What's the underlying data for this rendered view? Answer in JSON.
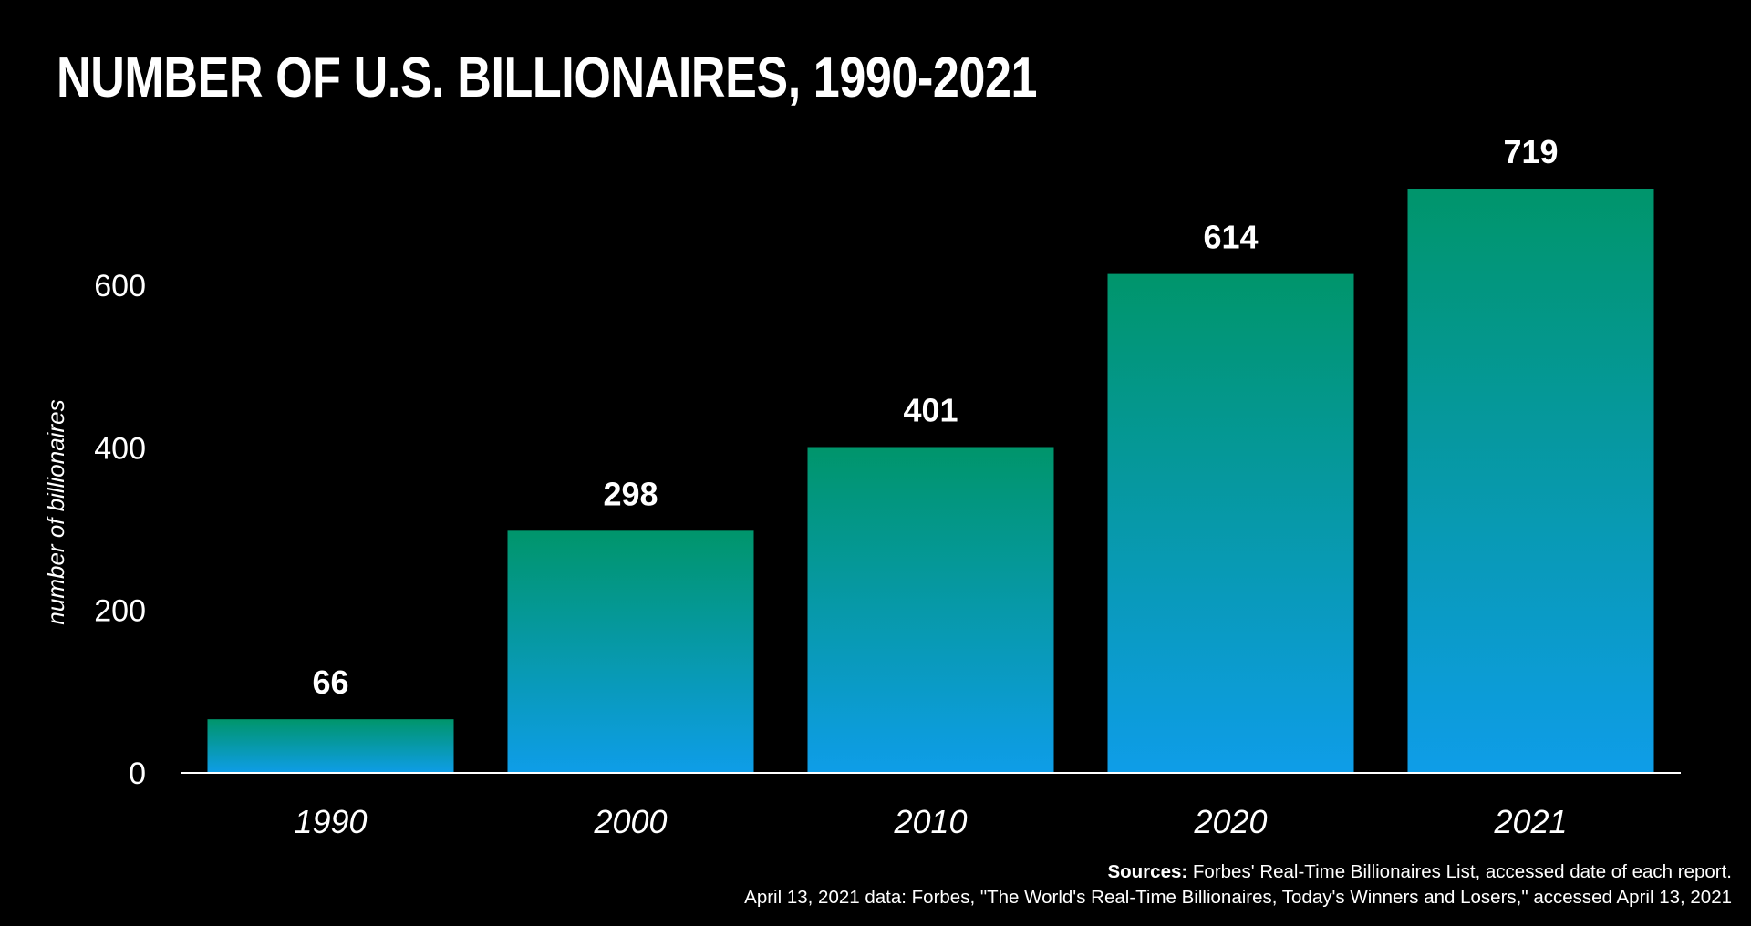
{
  "chart_data": {
    "type": "bar",
    "title": "NUMBER OF U.S. BILLIONAIRES, 1990-2021",
    "categories": [
      "1990",
      "2000",
      "2010",
      "2020",
      "2021"
    ],
    "values": [
      66,
      298,
      401,
      614,
      719
    ],
    "ylabel": "number of billionaires",
    "xlabel": "",
    "ylim": [
      0,
      719
    ],
    "yticks": [
      0,
      200,
      400,
      600
    ],
    "grid": false,
    "legend": "none",
    "data_labels": true
  },
  "colors": {
    "background": "#000000",
    "bar_top": "#00956B",
    "bar_bottom": "#0E9DE8",
    "text": "#ffffff",
    "axis_line": "#ffffff"
  },
  "sources": {
    "label": "Sources:",
    "line1": "Forbes' Real-Time Billionaires List, accessed date of each report.",
    "line2": "April 13, 2021 data: Forbes, \"The World's Real-Time Billionaires, Today's Winners and Losers,\" accessed April 13, 2021"
  }
}
